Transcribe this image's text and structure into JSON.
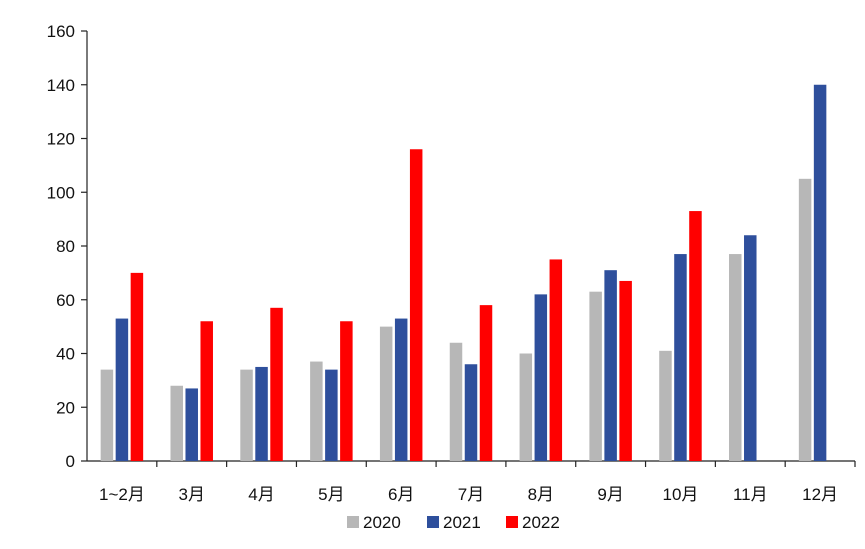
{
  "chart_data": {
    "type": "bar",
    "title": "",
    "xlabel": "",
    "ylabel": "",
    "ylim": [
      0,
      160
    ],
    "yticks": [
      0,
      20,
      40,
      60,
      80,
      100,
      120,
      140,
      160
    ],
    "grid": false,
    "legend_position": "bottom",
    "categories": [
      "1~2月",
      "3月",
      "4月",
      "5月",
      "6月",
      "7月",
      "8月",
      "9月",
      "10月",
      "11月",
      "12月"
    ],
    "series": [
      {
        "name": "2020",
        "color": "#b7b7b7",
        "values": [
          34,
          28,
          34,
          37,
          50,
          44,
          40,
          63,
          41,
          77,
          105
        ]
      },
      {
        "name": "2021",
        "color": "#2e4f9c",
        "values": [
          53,
          27,
          35,
          34,
          53,
          36,
          62,
          71,
          77,
          84,
          140
        ]
      },
      {
        "name": "2022",
        "color": "#ff0000",
        "values": [
          70,
          52,
          57,
          52,
          116,
          58,
          75,
          67,
          93,
          null,
          null
        ]
      }
    ]
  }
}
